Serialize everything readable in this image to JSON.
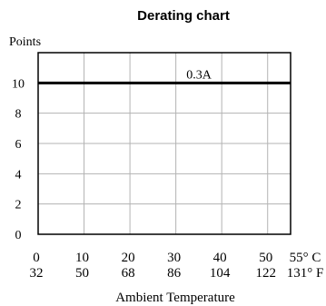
{
  "chart_data": {
    "type": "line",
    "title": "Derating chart",
    "ylabel": "Points",
    "xlabel": "Ambient Temperature",
    "ylim": [
      0,
      12
    ],
    "xlim": [
      0,
      55
    ],
    "yticks": [
      "0",
      "2",
      "4",
      "6",
      "8",
      "10"
    ],
    "xticks_c": [
      "0",
      "10",
      "20",
      "30",
      "40",
      "50",
      "55° C"
    ],
    "xticks_f": [
      "32",
      "50",
      "68",
      "86",
      "104",
      "122",
      "131° F"
    ],
    "grid": true,
    "series": [
      {
        "name": "0.3A",
        "x": [
          0,
          55
        ],
        "y": [
          10,
          10
        ]
      }
    ]
  }
}
